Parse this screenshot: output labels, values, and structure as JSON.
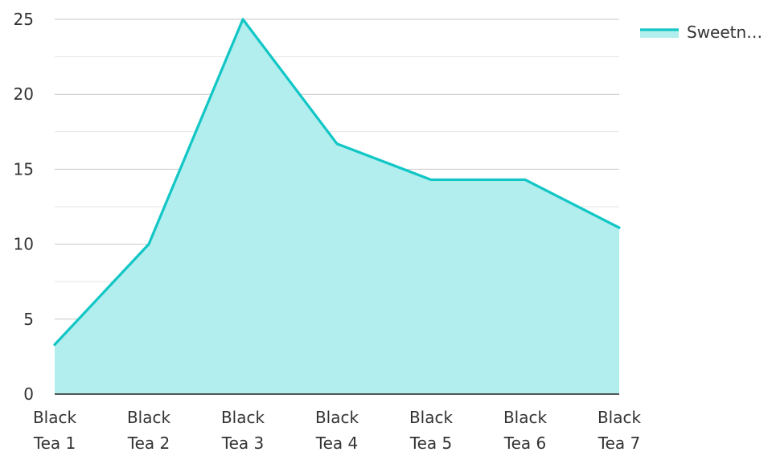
{
  "chart_data": {
    "type": "area",
    "categories": [
      [
        "Black",
        "Tea 1"
      ],
      [
        "Black",
        "Tea 2"
      ],
      [
        "Black",
        "Tea 3"
      ],
      [
        "Black",
        "Tea 4"
      ],
      [
        "Black",
        "Tea 5"
      ],
      [
        "Black",
        "Tea 6"
      ],
      [
        "Black",
        "Tea 7"
      ]
    ],
    "series": [
      {
        "name": "Sweetn…",
        "values": [
          3.3,
          10,
          25,
          16.7,
          14.3,
          14.3,
          11.1
        ],
        "color": "#12c6c6",
        "fill": "#b2eeee"
      }
    ],
    "ylim": [
      0,
      25
    ],
    "yticks": [
      0,
      5,
      10,
      15,
      20,
      25
    ],
    "grid": true,
    "legend": "top-right",
    "title": "",
    "xlabel": "",
    "ylabel": ""
  }
}
